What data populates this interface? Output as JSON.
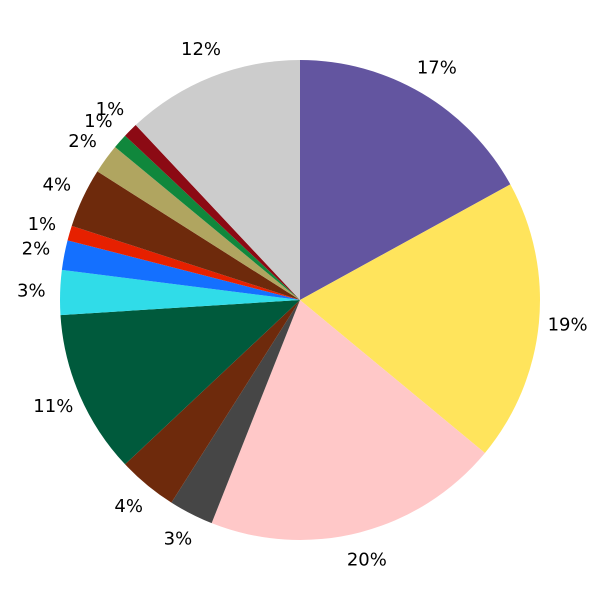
{
  "chart_data": {
    "type": "pie",
    "values": [
      17,
      19,
      20,
      3,
      4,
      11,
      3,
      2,
      1,
      4,
      2,
      1,
      1,
      12
    ],
    "value_labels": [
      "17%",
      "19%",
      "20%",
      "3%",
      "4%",
      "11%",
      "3%",
      "2%",
      "1%",
      "4%",
      "2%",
      "1%",
      "1%",
      "12%"
    ],
    "colors": [
      "#6355a0",
      "#ffe45c",
      "#ffc8c8",
      "#464646",
      "#6e2a0c",
      "#005a3c",
      "#30dce8",
      "#1470ff",
      "#e62000",
      "#6e2a0c",
      "#b0a560",
      "#10873c",
      "#8c0a14",
      "#cccccc"
    ]
  }
}
